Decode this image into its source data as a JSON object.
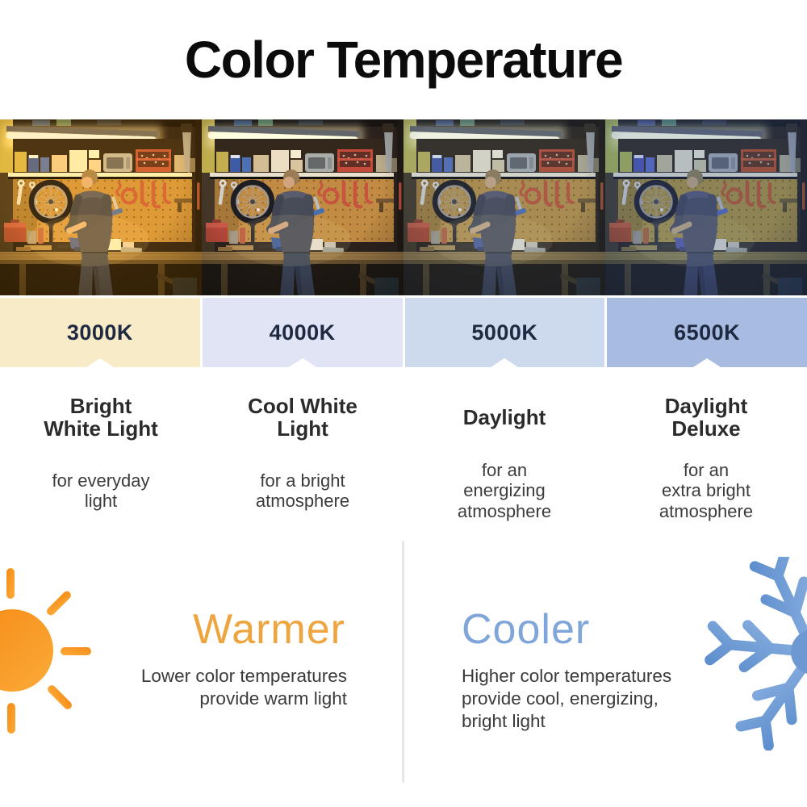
{
  "title": "Color Temperature",
  "photo": {
    "subject": "man working at a workbench in a garage workshop, repeated under four light color temperatures"
  },
  "band_label_color": "#1f2942",
  "temperatures": [
    {
      "kelvin": "3000K",
      "band_color": "#f8ebc8",
      "heading_lines": [
        "Bright",
        "White Light"
      ],
      "desc_lines": [
        "for everyday",
        "light"
      ]
    },
    {
      "kelvin": "4000K",
      "band_color": "#e0e4f4",
      "heading_lines": [
        "Cool White",
        "Light"
      ],
      "desc_lines": [
        "for a bright",
        "atmosphere"
      ]
    },
    {
      "kelvin": "5000K",
      "band_color": "#cdd9ec",
      "heading_lines": [
        "Daylight"
      ],
      "desc_lines": [
        "for an",
        "energizing",
        "atmosphere"
      ]
    },
    {
      "kelvin": "6500K",
      "band_color": "#a7bce0",
      "heading_lines": [
        "Daylight",
        "Deluxe"
      ],
      "desc_lines": [
        "for an",
        "extra bright",
        "atmosphere"
      ]
    }
  ],
  "warmer": {
    "heading": "Warmer",
    "color": "#efa53f",
    "icon": "sun-icon",
    "icon_color": "#f6921d",
    "desc_lines": [
      "Lower color temperatures",
      "provide warm light"
    ]
  },
  "cooler": {
    "heading": "Cooler",
    "color": "#7fa5d9",
    "icon": "snowflake-icon",
    "icon_color": "#6d98d2",
    "desc_lines": [
      "Higher color temperatures",
      "provide cool, energizing,",
      "bright light"
    ]
  }
}
